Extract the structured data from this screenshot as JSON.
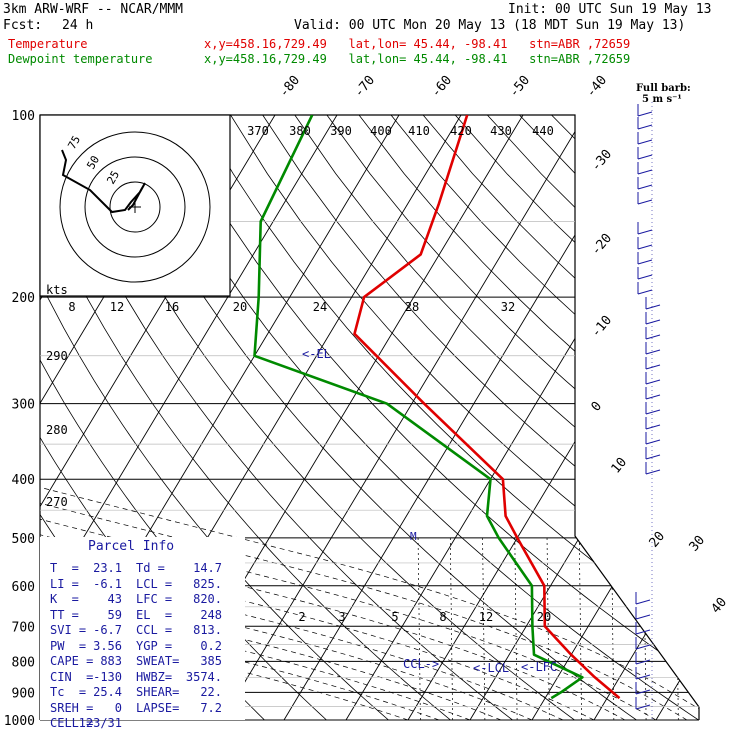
{
  "header": {
    "model": "3km ARW-WRF -- NCAR/MMM",
    "init": "Init: 00 UTC Sun 19 May 13",
    "fcst_label": "Fcst:",
    "fcst_value": "24 h",
    "valid": "Valid: 00 UTC Mon 20 May 13 (18 MDT Sun 19 May 13)",
    "temp_label": "Temperature",
    "temp_loc": "x,y=458.16,729.49   lat,lon= 45.44, -98.41   stn=ABR ,72659",
    "dew_label": "Dewpoint temperature",
    "dew_loc": "x,y=458.16,729.49   lat,lon= 45.44, -98.41   stn=ABR ,72659",
    "barb_title": "Full barb:",
    "barb_unit": "5 m s⁻¹"
  },
  "hodograph": {
    "unit": "kts",
    "rings": [
      "25",
      "50",
      "75"
    ]
  },
  "parcel": {
    "title": "Parcel Info",
    "rows": [
      [
        "T  =",
        "23.1",
        "Td =",
        "14.7"
      ],
      [
        "LI =",
        "-6.1",
        "LCL =",
        "825."
      ],
      [
        "K  =",
        "43",
        "LFC =",
        "820."
      ],
      [
        "TT =",
        "59",
        "EL  =",
        "248"
      ],
      [
        "SVI =",
        "-6.7",
        "CCL =",
        "813."
      ],
      [
        "PW  =",
        "3.56",
        "YGP =",
        "0.2"
      ],
      [
        "CAPE =",
        "883",
        "SWEAT=",
        "385"
      ],
      [
        "CIN  =",
        "-130",
        "HWBZ=",
        "3574."
      ],
      [
        "Tc  =",
        "25.4",
        "SHEAR=",
        "22."
      ],
      [
        "SREH =",
        "0",
        "LAPSE=",
        "7.2"
      ],
      [
        "CELL =",
        "123/31",
        "",
        ""
      ]
    ]
  },
  "labels": {
    "el": "<-EL",
    "ccl": "CCL->",
    "lcl": "<-LCL",
    "lfc": "<-LFC",
    "m": "M"
  },
  "colors": {
    "temperature": "#e00000",
    "dewpoint": "#008a00",
    "barbs": "#1a1aa0"
  },
  "chart_data": {
    "type": "line",
    "pressure_levels": [
      100,
      200,
      300,
      400,
      500,
      600,
      700,
      800,
      900,
      1000
    ],
    "isotherm_labels": [
      "-80",
      "-70",
      "-60",
      "-50",
      "-40",
      "-30",
      "-20",
      "-10",
      "0",
      "10",
      "20",
      "30",
      "40"
    ],
    "theta_labels": [
      "370",
      "380",
      "390",
      "400",
      "410",
      "420",
      "430",
      "440"
    ],
    "mixing_ratio_labels_upper": [
      "8",
      "12",
      "16",
      "20",
      "24",
      "28",
      "32"
    ],
    "mixing_ratio_labels_lower": [
      "2",
      "3",
      "5",
      "8",
      "12",
      "20"
    ],
    "dry_adiabat_labels": [
      "290",
      "280",
      "270"
    ],
    "series": [
      {
        "name": "Temperature",
        "points": [
          [
            100,
            -59
          ],
          [
            140,
            -55
          ],
          [
            170,
            -53
          ],
          [
            200,
            -58
          ],
          [
            230,
            -56
          ],
          [
            300,
            -38
          ],
          [
            400,
            -18
          ],
          [
            460,
            -14
          ],
          [
            500,
            -10
          ],
          [
            600,
            -1
          ],
          [
            700,
            3
          ],
          [
            780,
            10
          ],
          [
            850,
            16
          ],
          [
            920,
            22
          ]
        ]
      },
      {
        "name": "Dewpoint temperature",
        "points": [
          [
            100,
            -84
          ],
          [
            150,
            -82
          ],
          [
            200,
            -75
          ],
          [
            250,
            -70
          ],
          [
            300,
            -44
          ],
          [
            400,
            -20
          ],
          [
            460,
            -17
          ],
          [
            500,
            -13
          ],
          [
            600,
            -3
          ],
          [
            700,
            1
          ],
          [
            780,
            4
          ],
          [
            850,
            14
          ],
          [
            900,
            12
          ],
          [
            920,
            11
          ]
        ]
      }
    ]
  }
}
